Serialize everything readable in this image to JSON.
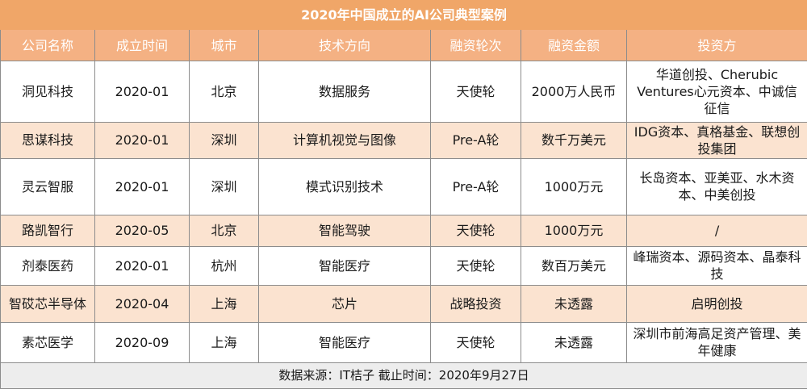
{
  "table": {
    "title": "2020年中国成立的AI公司典型案例",
    "headers": [
      "公司名称",
      "成立时间",
      "城市",
      "技术方向",
      "融资轮次",
      "融资金额",
      "投资方"
    ],
    "rows": [
      [
        "洞见科技",
        "2020-01",
        "北京",
        "数据服务",
        "天使轮",
        "2000万人民币",
        "华道创投、Cherubic Ventures心元资本、中诚信征信"
      ],
      [
        "思谋科技",
        "2020-01",
        "深圳",
        "计算机视觉与图像",
        "Pre-A轮",
        "数千万美元",
        "IDG资本、真格基金、联想创投集团"
      ],
      [
        "灵云智服",
        "2020-01",
        "深圳",
        "模式识别技术",
        "Pre-A轮",
        "1000万元",
        "长岛资本、亚美亚、水木资本、中美创投"
      ],
      [
        "路凯智行",
        "2020-05",
        "北京",
        "智能驾驶",
        "天使轮",
        "1000万元",
        "/"
      ],
      [
        "剂泰医药",
        "2020-01",
        "杭州",
        "智能医疗",
        "天使轮",
        "数百万美元",
        "峰瑞资本、源码资本、晶泰科技"
      ],
      [
        "智砹芯半导体",
        "2020-04",
        "上海",
        "芯片",
        "战略投资",
        "未透露",
        "启明创投"
      ],
      [
        "素芯医学",
        "2020-09",
        "上海",
        "智能医疗",
        "天使轮",
        "未透露",
        "深圳市前海高足资产管理、美年健康"
      ]
    ],
    "footer": "数据来源：IT桔子 截止时间：2020年9月27日"
  }
}
